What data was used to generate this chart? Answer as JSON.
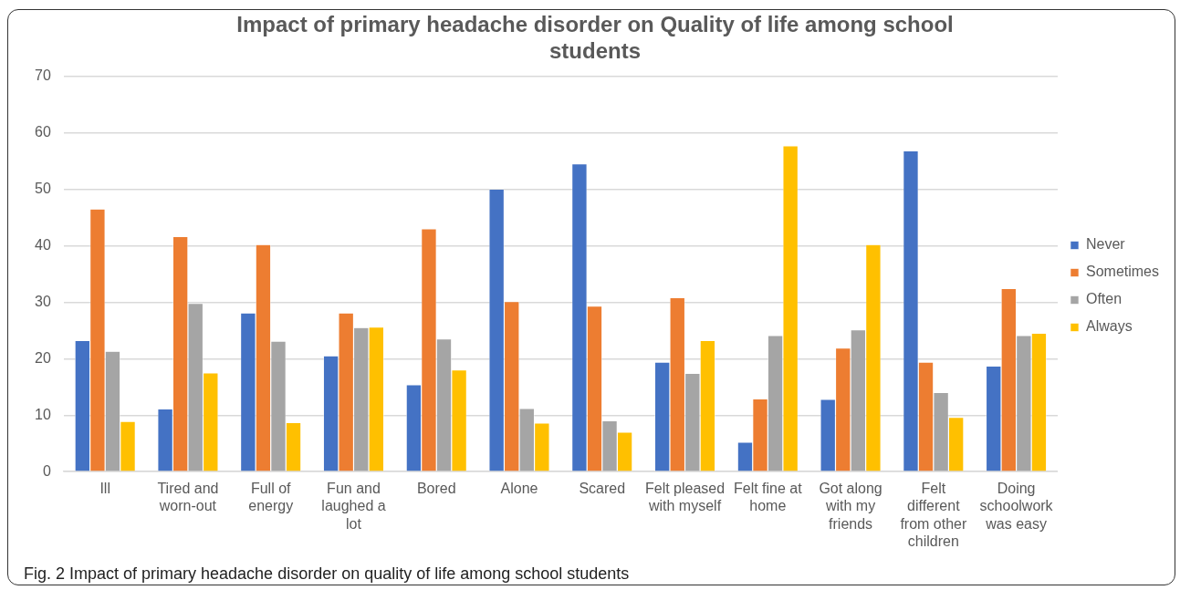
{
  "chart_data": {
    "type": "bar",
    "title": "Impact of primary headache disorder on Quality of life among school students",
    "categories": [
      "Ill",
      "Tired and worn-out",
      "Full of energy",
      "Fun and laughed a lot",
      "Bored",
      "Alone",
      "Scared",
      "Felt pleased with myself",
      "Felt fine at home",
      "Got along with my friends",
      "Felt different from other children",
      "Doing schoolwork was easy"
    ],
    "series": [
      {
        "name": "Never",
        "color": "#4472c4",
        "values": [
          23.2,
          11.1,
          28.1,
          20.5,
          15.4,
          50.0,
          54.5,
          19.4,
          5.2,
          12.8,
          56.8,
          18.7
        ]
      },
      {
        "name": "Sometimes",
        "color": "#ed7d31",
        "values": [
          46.5,
          41.6,
          40.2,
          28.1,
          43.0,
          30.1,
          29.3,
          30.8,
          12.9,
          21.9,
          19.4,
          32.4
        ]
      },
      {
        "name": "Often",
        "color": "#a5a5a5",
        "values": [
          21.3,
          29.8,
          23.1,
          25.5,
          23.5,
          11.2,
          9.0,
          17.4,
          24.1,
          25.1,
          14.0,
          24.1
        ]
      },
      {
        "name": "Always",
        "color": "#ffc000",
        "values": [
          8.9,
          17.5,
          8.7,
          25.6,
          18.0,
          8.6,
          7.0,
          23.2,
          57.7,
          40.2,
          9.6,
          24.5
        ]
      }
    ],
    "ylim": [
      0,
      70
    ],
    "yticks": [
      0,
      10,
      20,
      30,
      40,
      50,
      60,
      70
    ],
    "grid": "y",
    "legend": "right",
    "annotations": [
      "Fig. 2 Impact of primary headache disorder on quality of life among school students"
    ]
  }
}
